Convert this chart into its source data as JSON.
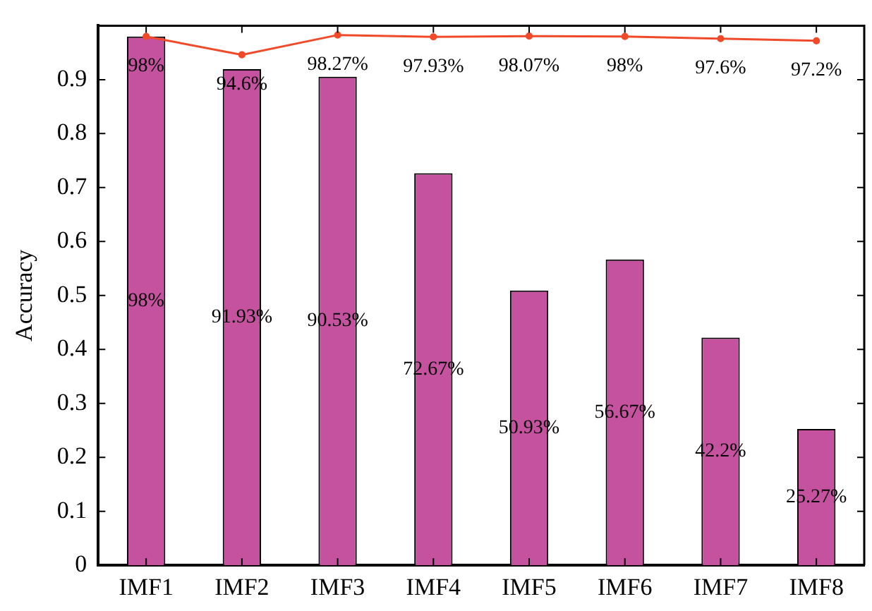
{
  "chart_data": {
    "type": "bar",
    "ylabel": "Accuracy",
    "categories": [
      "IMF1",
      "IMF2",
      "IMF3",
      "IMF4",
      "IMF5",
      "IMF6",
      "IMF7",
      "IMF8"
    ],
    "series": [
      {
        "color": "#c4529e",
        "values": [
          0.98,
          0.9193,
          0.9053,
          0.7267,
          0.5093,
          0.5667,
          0.422,
          0.2527
        ],
        "value_labels": [
          "98%",
          "91.93%",
          "90.53%",
          "72.67%",
          "50.93%",
          "56.67%",
          "42.2%",
          "25.27%"
        ]
      },
      {
        "type": "line",
        "color": "#f04a2a",
        "values": [
          0.98,
          0.946,
          0.9827,
          0.9793,
          0.9807,
          0.98,
          0.976,
          0.972
        ],
        "value_labels": [
          "98%",
          "94.6%",
          "98.27%",
          "97.93%",
          "98.07%",
          "98%",
          "97.6%",
          "97.2%"
        ]
      }
    ],
    "ylim": [
      0,
      1
    ],
    "yticks": [
      0,
      0.1,
      0.2,
      0.3,
      0.4,
      0.5,
      0.6,
      0.7,
      0.8,
      0.9
    ],
    "grid": false,
    "legend": false,
    "marker": "circle",
    "line_style": "solid"
  }
}
